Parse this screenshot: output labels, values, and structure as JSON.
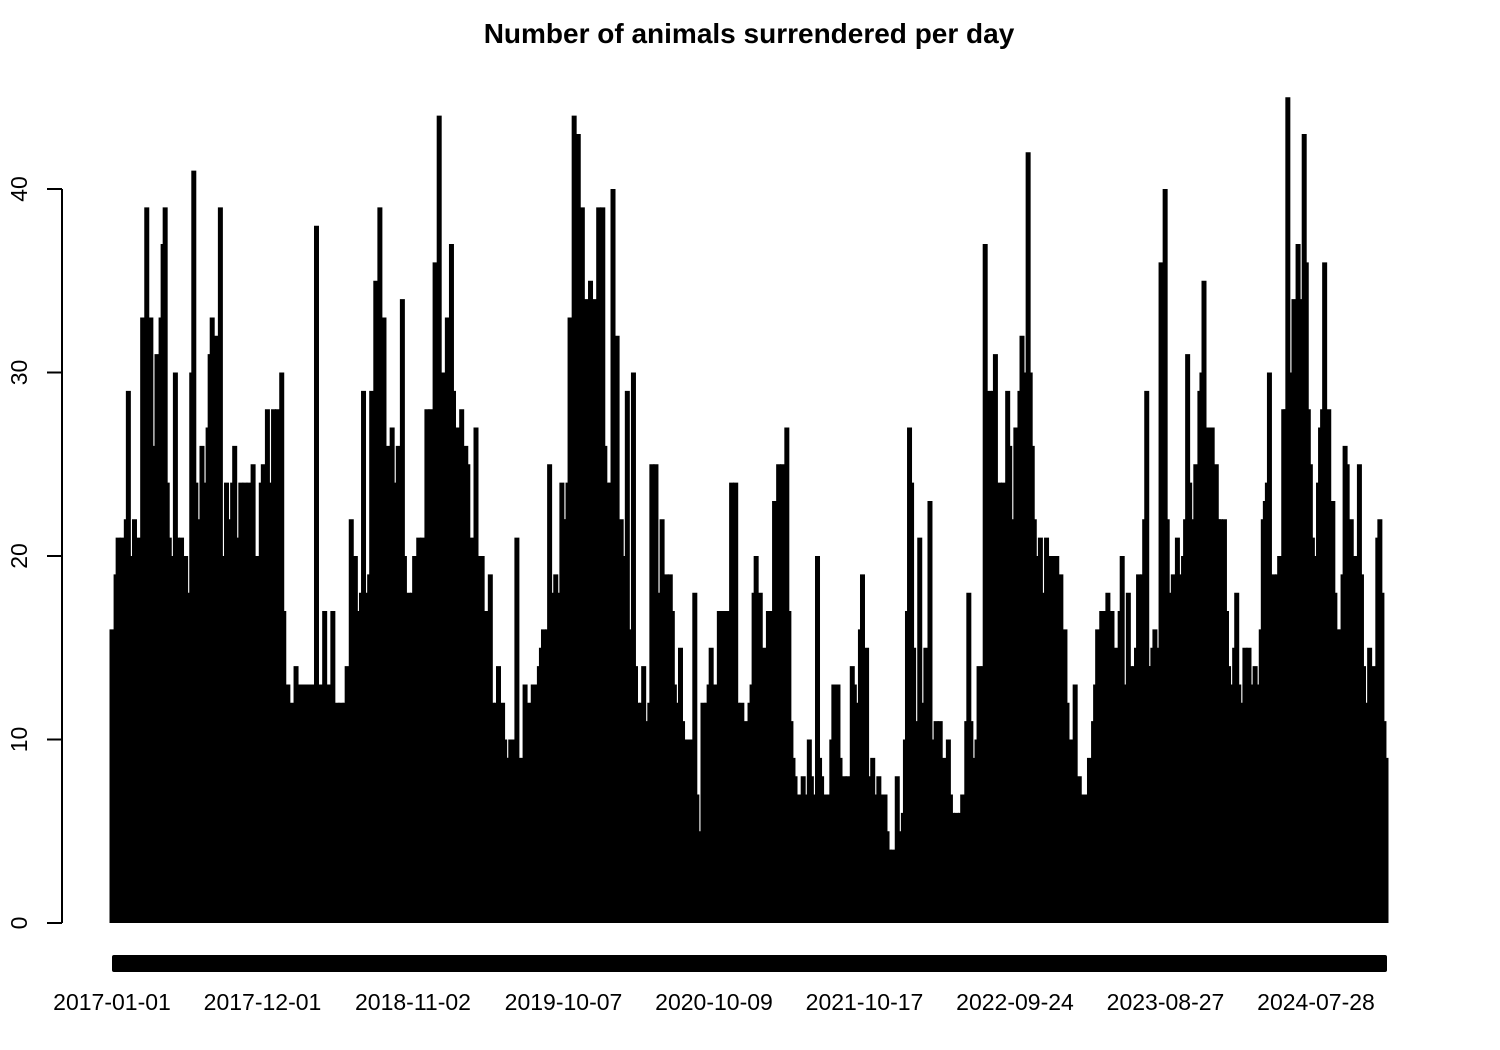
{
  "chart_data": {
    "type": "bar",
    "title": "Number of animals surrendered per day",
    "xlabel": "",
    "ylabel": "",
    "ylim": [
      0,
      45
    ],
    "yticks": [
      0,
      10,
      20,
      30,
      40
    ],
    "x_tick_labels": [
      "2017-01-01",
      "2017-12-01",
      "2018-11-02",
      "2019-10-07",
      "2020-10-09",
      "2021-10-17",
      "2022-09-24",
      "2023-08-27",
      "2024-07-28"
    ],
    "grid": false,
    "legend": "none",
    "bar_color": "#000000",
    "series": [
      {
        "values": [
          16,
          12,
          19,
          21,
          15,
          21,
          18,
          22,
          29,
          12,
          20,
          22,
          16,
          21,
          15,
          33,
          28,
          39,
          33,
          33,
          20,
          26,
          31,
          19,
          33,
          37,
          39,
          24,
          21,
          20,
          18,
          30,
          21,
          12,
          21,
          16,
          20,
          13,
          18,
          30,
          41,
          24,
          22,
          19,
          26,
          20,
          24,
          27,
          31,
          33,
          20,
          32,
          28,
          39,
          20,
          18,
          24,
          16,
          22,
          24,
          26,
          21,
          18,
          24,
          20,
          24,
          23,
          24,
          14,
          25,
          16,
          20,
          18,
          24,
          25,
          21,
          28,
          24,
          20,
          28,
          20,
          28,
          24,
          30,
          17,
          11,
          13,
          9,
          12,
          9,
          14,
          10,
          13,
          10,
          13,
          12,
          13,
          10,
          13,
          12,
          38,
          12,
          13,
          12,
          17,
          10,
          13,
          11,
          17,
          10,
          12,
          10,
          12,
          11,
          12,
          14,
          12,
          22,
          17,
          20,
          15,
          17,
          18,
          29,
          14,
          18,
          19,
          29,
          24,
          35,
          28,
          39,
          26,
          33,
          17,
          26,
          22,
          27,
          22,
          24,
          26,
          19,
          34,
          20,
          15,
          18,
          14,
          18,
          20,
          18,
          21,
          20,
          21,
          20,
          28,
          24,
          28,
          26,
          36,
          25,
          44,
          26,
          30,
          25,
          33,
          30,
          37,
          29,
          25,
          27,
          23,
          28,
          21,
          26,
          25,
          20,
          21,
          14,
          27,
          20,
          16,
          20,
          12,
          17,
          11,
          19,
          12,
          10,
          12,
          14,
          11,
          12,
          10,
          9,
          9,
          10,
          9,
          10,
          21,
          9,
          8,
          9,
          13,
          10,
          12,
          8,
          13,
          10,
          13,
          14,
          15,
          16,
          12,
          16,
          25,
          16,
          18,
          19,
          17,
          18,
          24,
          22,
          22,
          24,
          33,
          21,
          44,
          30,
          43,
          33,
          39,
          25,
          34,
          28,
          35,
          26,
          34,
          30,
          39,
          27,
          39,
          26,
          24,
          21,
          24,
          40,
          22,
          32,
          21,
          22,
          19,
          20,
          29,
          16,
          13,
          30,
          14,
          12,
          11,
          12,
          14,
          10,
          11,
          12,
          25,
          13,
          25,
          18,
          13,
          22,
          15,
          19,
          11,
          19,
          17,
          13,
          12,
          10,
          15,
          11,
          9,
          10,
          9,
          10,
          8,
          18,
          7,
          5,
          3,
          12,
          11,
          12,
          13,
          15,
          12,
          13,
          9,
          17,
          14,
          17,
          13,
          17,
          12,
          24,
          13,
          24,
          12,
          11,
          12,
          10,
          11,
          9,
          12,
          13,
          18,
          20,
          15,
          18,
          10,
          15,
          13,
          17,
          12,
          17,
          23,
          17,
          25,
          21,
          25,
          13,
          27,
          17,
          11,
          9,
          8,
          6,
          7,
          6,
          8,
          6,
          7,
          10,
          8,
          6,
          7,
          20,
          9,
          8,
          7,
          6,
          7,
          6,
          10,
          13,
          10,
          13,
          9,
          7,
          8,
          6,
          8,
          6,
          14,
          13,
          10,
          12,
          16,
          19,
          13,
          15,
          8,
          6,
          9,
          5,
          7,
          8,
          7,
          6,
          7,
          5,
          4,
          3,
          4,
          3,
          8,
          4,
          5,
          6,
          10,
          17,
          27,
          24,
          15,
          11,
          10,
          21,
          10,
          12,
          15,
          11,
          23,
          10,
          8,
          11,
          9,
          11,
          7,
          9,
          8,
          10,
          7,
          6,
          5,
          6,
          5,
          6,
          7,
          5,
          11,
          18,
          11,
          9,
          8,
          10,
          14,
          10,
          14,
          37,
          22,
          29,
          24,
          29,
          31,
          22,
          24,
          18,
          24,
          22,
          29,
          26,
          19,
          22,
          27,
          23,
          29,
          32,
          30,
          26,
          42,
          30,
          26,
          22,
          20,
          19,
          21,
          17,
          18,
          21,
          20,
          18,
          20,
          15,
          20,
          17,
          19,
          14,
          16,
          12,
          9,
          10,
          9,
          13,
          7,
          8,
          7,
          6,
          7,
          6,
          9,
          7,
          11,
          13,
          16,
          12,
          17,
          12,
          17,
          18,
          13,
          17,
          14,
          15,
          12,
          17,
          20,
          13,
          11,
          18,
          14,
          12,
          14,
          15,
          19,
          15,
          19,
          22,
          29,
          14,
          14,
          15,
          16,
          15,
          14,
          36,
          24,
          40,
          22,
          18,
          16,
          19,
          16,
          21,
          18,
          19,
          20,
          22,
          31,
          24,
          18,
          22,
          25,
          19,
          29,
          30,
          35,
          21,
          27,
          22,
          27,
          22,
          25,
          22,
          22,
          21,
          22,
          17,
          14,
          13,
          11,
          15,
          18,
          13,
          10,
          12,
          15,
          14,
          15,
          12,
          13,
          14,
          12,
          13,
          16,
          22,
          23,
          24,
          30,
          18,
          19,
          18,
          19,
          20,
          19,
          28,
          28,
          45,
          24,
          30,
          34,
          27,
          37,
          33,
          34,
          43,
          36,
          28,
          25,
          21,
          16,
          20,
          24,
          27,
          28,
          36,
          24,
          28,
          23,
          23,
          18,
          16,
          14,
          16,
          19,
          26,
          25,
          17,
          22,
          19,
          20,
          19,
          25,
          19,
          14,
          10,
          12,
          15,
          10,
          14,
          12,
          21,
          22,
          18,
          11,
          9
        ]
      }
    ]
  }
}
